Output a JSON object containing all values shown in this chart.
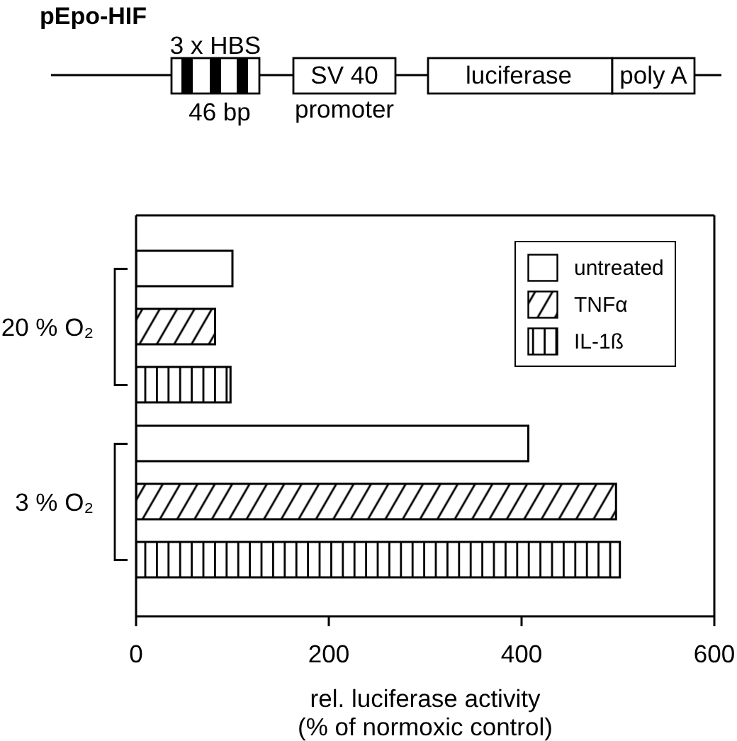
{
  "chart_data": {
    "type": "bar",
    "orientation": "horizontal",
    "title": "pEpo-HIF",
    "xlabel": "rel. luciferase activity\n(% of normoxic control)",
    "categories": [
      "20 % O₂",
      "3 % O₂"
    ],
    "series": [
      {
        "name": "untreated",
        "color": "#ffffff",
        "values": [
          100,
          407
        ]
      },
      {
        "name": "TNFα",
        "color": "#000000",
        "values": [
          82,
          498
        ]
      },
      {
        "name": "IL-1ß",
        "color": "#000000",
        "values": [
          98,
          502
        ]
      }
    ],
    "xlim": [
      0,
      600
    ],
    "xticks": [
      0,
      200,
      400,
      600
    ],
    "legend": "top right",
    "annotations": [
      "3 x HBS",
      "46 bp",
      "SV 40",
      "promoter",
      "luciferase",
      "poly A"
    ]
  }
}
